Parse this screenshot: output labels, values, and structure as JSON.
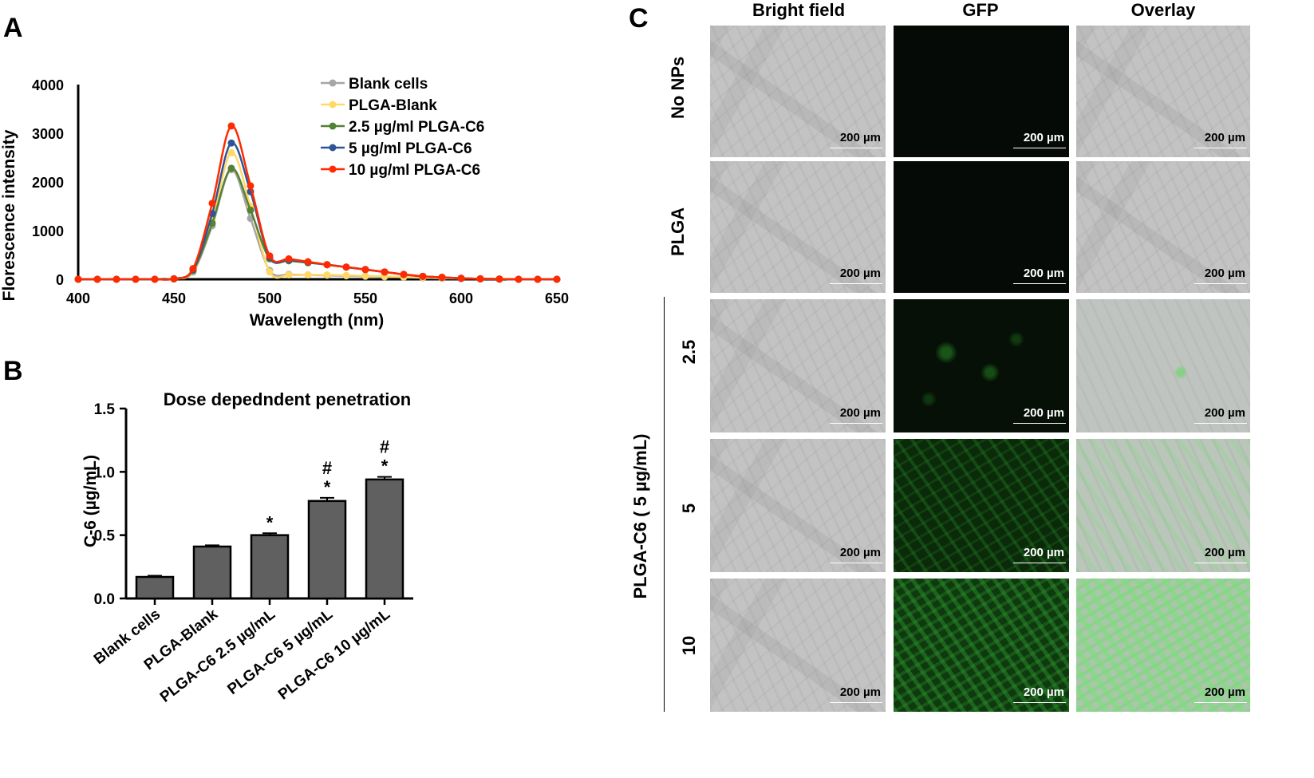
{
  "panels": {
    "a": "A",
    "b": "B",
    "c": "C"
  },
  "chart_data": [
    {
      "type": "line",
      "panel": "A",
      "title": "",
      "xlabel": "Wavelength (nm)",
      "ylabel": "Florescence intensity",
      "xlim": [
        400,
        650
      ],
      "ylim": [
        0,
        4000
      ],
      "xticks": [
        400,
        450,
        500,
        550,
        600,
        650
      ],
      "yticks": [
        0,
        1000,
        2000,
        3000,
        4000
      ],
      "legend_position": "top-right",
      "x": [
        400,
        410,
        420,
        430,
        440,
        450,
        460,
        470,
        480,
        490,
        500,
        510,
        520,
        530,
        540,
        550,
        560,
        570,
        580,
        590,
        600,
        610,
        620,
        630,
        640,
        650
      ],
      "series": [
        {
          "name": "Blank cells",
          "color": "#a6a6a6",
          "values": [
            0,
            0,
            0,
            0,
            0,
            10,
            150,
            1100,
            2250,
            1250,
            180,
            100,
            90,
            80,
            70,
            60,
            50,
            40,
            30,
            20,
            15,
            10,
            5,
            0,
            0,
            0
          ]
        },
        {
          "name": "PLGA-Blank",
          "color": "#ffd966",
          "values": [
            0,
            0,
            0,
            0,
            0,
            10,
            170,
            1200,
            2600,
            1500,
            150,
            90,
            90,
            90,
            80,
            70,
            60,
            50,
            40,
            30,
            20,
            10,
            5,
            0,
            0,
            0
          ]
        },
        {
          "name": "2.5 µg/ml PLGA-C6",
          "color": "#548235",
          "values": [
            0,
            0,
            0,
            0,
            0,
            10,
            180,
            1150,
            2280,
            1420,
            420,
            380,
            340,
            300,
            250,
            200,
            150,
            100,
            60,
            40,
            20,
            10,
            5,
            0,
            0,
            0
          ]
        },
        {
          "name": "5 µg/ml PLGA-C6",
          "color": "#2f5597",
          "values": [
            0,
            0,
            0,
            0,
            0,
            10,
            200,
            1350,
            2800,
            1800,
            450,
            400,
            350,
            300,
            250,
            200,
            150,
            100,
            60,
            40,
            20,
            10,
            5,
            0,
            0,
            0
          ]
        },
        {
          "name": "10 µg/ml PLGA-C6",
          "color": "#ff2a00",
          "values": [
            0,
            0,
            0,
            0,
            0,
            10,
            220,
            1560,
            3150,
            1920,
            480,
            420,
            360,
            300,
            250,
            200,
            150,
            100,
            60,
            40,
            20,
            10,
            5,
            0,
            0,
            0
          ]
        }
      ]
    },
    {
      "type": "bar",
      "panel": "B",
      "title": "Dose depedndent penetration",
      "xlabel": "",
      "ylabel": "C-6 (µg/mL)",
      "ylim": [
        0,
        1.5
      ],
      "yticks": [
        "0.0",
        "0.5",
        "1.0",
        "1.5"
      ],
      "bar_color": "#606060",
      "categories": [
        "Blank cells",
        "PLGA-Blank",
        "PLGA-C6 2.5 µg/mL",
        "PLGA-C6 5 µg/mL",
        "PLGA-C6 10 µg/mL"
      ],
      "values": [
        0.17,
        0.41,
        0.5,
        0.77,
        0.94
      ],
      "errors": [
        0.01,
        0.01,
        0.015,
        0.025,
        0.02
      ],
      "annotations": [
        [],
        [],
        [
          "*"
        ],
        [
          "#",
          "*"
        ],
        [
          "#",
          "*"
        ]
      ]
    }
  ],
  "micrographs": {
    "column_headers": [
      "Bright field",
      "GFP",
      "Overlay"
    ],
    "row_labels": [
      "No NPs",
      "PLGA",
      "2.5",
      "5",
      "10"
    ],
    "group_label": "PLGA-C6 ( 5 µg/mL)",
    "scale_label": "200 µm"
  }
}
